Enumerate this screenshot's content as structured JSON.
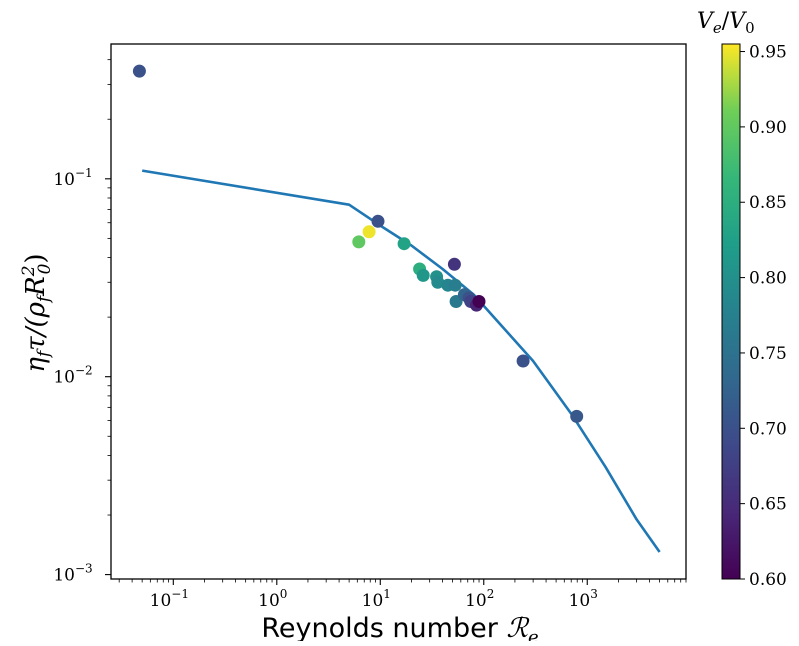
{
  "chart_data": {
    "type": "scatter",
    "title": "",
    "xlabel": "Reynolds number 𝒩ₑ",
    "xlabel_parts": {
      "main": "Reynolds number ",
      "symbol": "ℛ",
      "subscript": "e"
    },
    "ylabel": "ηfτ/(ρfR0²)",
    "ylabel_parts": {
      "eta": "η",
      "eta_sub": "f",
      "tau": "τ/(ρ",
      "rho_sub": "f",
      "R": "R",
      "R_sub": "0",
      "R_sup": "2",
      "close": ")"
    },
    "xscale": "log",
    "yscale": "log",
    "xlim": [
      0.025,
      9000
    ],
    "ylim": [
      0.00095,
      0.48
    ],
    "grid": false,
    "x_ticks": [
      {
        "value": 0.1,
        "base": "10",
        "exp": "−1"
      },
      {
        "value": 1,
        "base": "10",
        "exp": "0"
      },
      {
        "value": 10,
        "base": "10",
        "exp": "1"
      },
      {
        "value": 100,
        "base": "10",
        "exp": "2"
      },
      {
        "value": 1000,
        "base": "10",
        "exp": "3"
      }
    ],
    "y_ticks": [
      {
        "value": 0.001,
        "base": "10",
        "exp": "−3"
      },
      {
        "value": 0.01,
        "base": "10",
        "exp": "−2"
      },
      {
        "value": 0.1,
        "base": "10",
        "exp": "−1"
      }
    ],
    "line_series": {
      "color": "#1f77b4",
      "points": [
        [
          0.05,
          0.11
        ],
        [
          5.0,
          0.074
        ],
        [
          10,
          0.058
        ],
        [
          20,
          0.046
        ],
        [
          40,
          0.035
        ],
        [
          80,
          0.026
        ],
        [
          150,
          0.018
        ],
        [
          300,
          0.012
        ],
        [
          700,
          0.0065
        ],
        [
          1500,
          0.0035
        ],
        [
          3000,
          0.0019
        ],
        [
          5000,
          0.0013
        ]
      ]
    },
    "scatter_points": [
      {
        "x": 0.047,
        "y": 0.35,
        "c": 0.7
      },
      {
        "x": 9.5,
        "y": 0.061,
        "c": 0.7
      },
      {
        "x": 6.2,
        "y": 0.048,
        "c": 0.9
      },
      {
        "x": 7.8,
        "y": 0.054,
        "c": 0.95
      },
      {
        "x": 17,
        "y": 0.047,
        "c": 0.83
      },
      {
        "x": 24,
        "y": 0.035,
        "c": 0.85
      },
      {
        "x": 26,
        "y": 0.0325,
        "c": 0.81
      },
      {
        "x": 35,
        "y": 0.032,
        "c": 0.8
      },
      {
        "x": 36,
        "y": 0.03,
        "c": 0.79
      },
      {
        "x": 45,
        "y": 0.029,
        "c": 0.78
      },
      {
        "x": 52,
        "y": 0.037,
        "c": 0.66
      },
      {
        "x": 53,
        "y": 0.029,
        "c": 0.77
      },
      {
        "x": 54,
        "y": 0.024,
        "c": 0.76
      },
      {
        "x": 65,
        "y": 0.026,
        "c": 0.73
      },
      {
        "x": 72,
        "y": 0.025,
        "c": 0.7
      },
      {
        "x": 75,
        "y": 0.024,
        "c": 0.68
      },
      {
        "x": 85,
        "y": 0.023,
        "c": 0.64
      },
      {
        "x": 90,
        "y": 0.024,
        "c": 0.6
      },
      {
        "x": 240,
        "y": 0.012,
        "c": 0.7
      },
      {
        "x": 790,
        "y": 0.0063,
        "c": 0.71
      }
    ],
    "colorbar": {
      "label_parts": {
        "V": "V",
        "e": "e",
        "slash": "/",
        "V0": "V",
        "zero": "0"
      },
      "label": "Ve/V0",
      "min": 0.6,
      "max": 0.955,
      "colormap": "viridis",
      "ticks": [
        "0.60",
        "0.65",
        "0.70",
        "0.75",
        "0.80",
        "0.85",
        "0.90",
        "0.95"
      ]
    }
  }
}
